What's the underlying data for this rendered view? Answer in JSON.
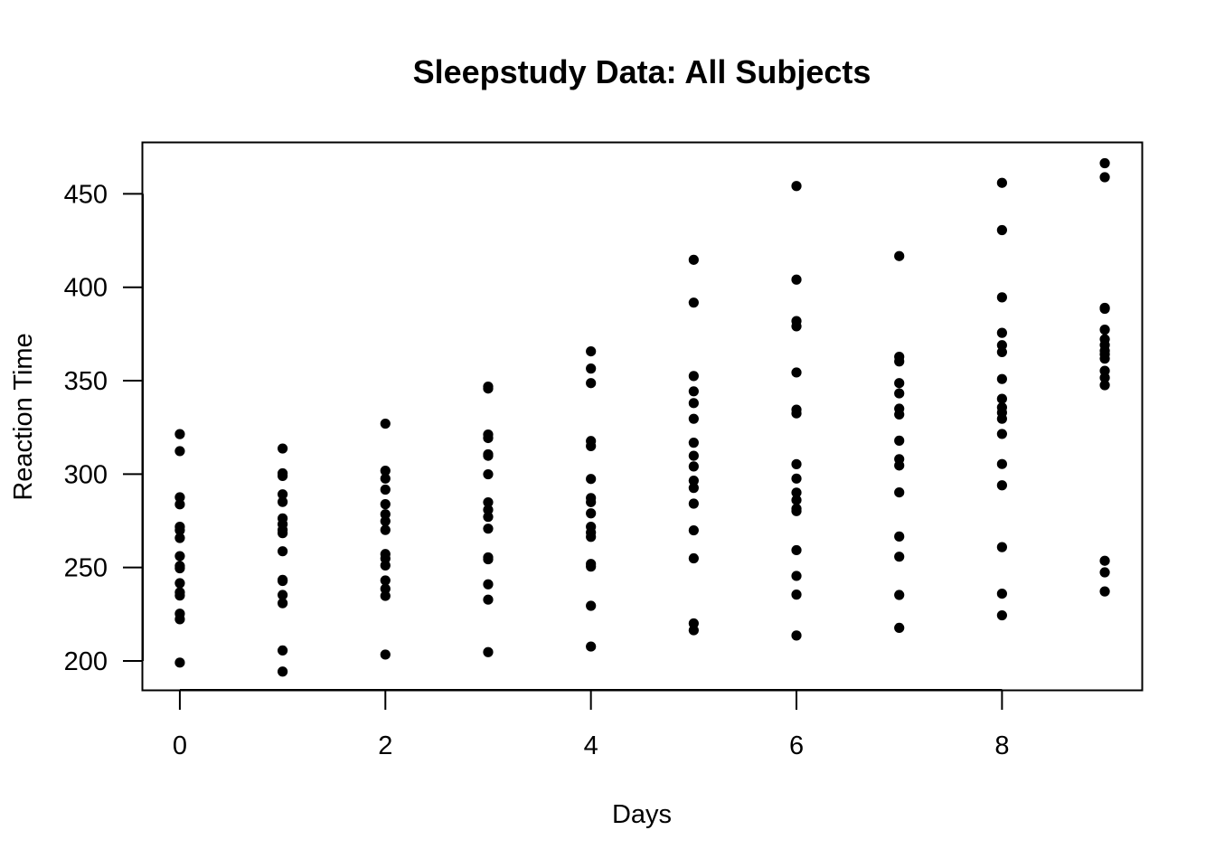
{
  "chart_data": {
    "type": "scatter",
    "title": "Sleepstudy Data: All Subjects",
    "xlabel": "Days",
    "ylabel": "Reaction Time",
    "xlim": [
      -0.36,
      9.36
    ],
    "ylim": [
      184.5,
      477.3
    ],
    "xticks": [
      0,
      2,
      4,
      6,
      8
    ],
    "yticks": [
      200,
      250,
      300,
      350,
      400,
      450
    ],
    "grid": false,
    "point_color": "#000000",
    "x": [
      0,
      1,
      2,
      3,
      4,
      5,
      6,
      7,
      8,
      9
    ],
    "y_by_x": [
      [
        321.4,
        312.3,
        287.6,
        283.8,
        271.8,
        269.9,
        265.8,
        256.1,
        250.8,
        249.6,
        241.6,
        236.7,
        235.0,
        225.3,
        222.3,
        199.1
      ],
      [
        313.7,
        300.4,
        299.0,
        289.2,
        285.1,
        276.3,
        273.2,
        270.1,
        268.4,
        258.7,
        243.4,
        242.8,
        235.3,
        230.9,
        205.6,
        194.3
      ],
      [
        327.0,
        301.8,
        297.6,
        291.7,
        283.9,
        278.5,
        274.8,
        270.1,
        257.2,
        254.8,
        251.1,
        243.1,
        238.6,
        234.8,
        203.4
      ],
      [
        346.8,
        345.8,
        321.2,
        319.3,
        310.6,
        309.8,
        299.9,
        284.9,
        280.9,
        277.1,
        270.8,
        255.4,
        254.4,
        241.0,
        232.8,
        204.7
      ],
      [
        365.7,
        356.5,
        348.7,
        317.7,
        315.0,
        297.4,
        287.2,
        285.0,
        279.0,
        271.8,
        268.7,
        266.4,
        251.9,
        250.5,
        229.5,
        207.7
      ],
      [
        414.7,
        391.8,
        352.5,
        344.3,
        338.0,
        329.6,
        316.8,
        309.8,
        304.1,
        296.5,
        292.6,
        284.2,
        269.9,
        254.9,
        220.1,
        216.4
      ],
      [
        454.2,
        404.1,
        381.9,
        379.1,
        354.4,
        334.5,
        332.5,
        305.3,
        297.6,
        290.1,
        286.1,
        281.5,
        280.2,
        259.3,
        245.5,
        235.5,
        213.6
      ],
      [
        416.7,
        362.8,
        360.3,
        348.7,
        343.2,
        335.0,
        331.9,
        317.9,
        308.0,
        304.6,
        290.2,
        266.6,
        255.8,
        235.3,
        217.7
      ],
      [
        455.9,
        430.6,
        394.6,
        375.6,
        369.0,
        365.3,
        350.9,
        340.3,
        335.7,
        332.9,
        329.6,
        321.5,
        305.4,
        294.0,
        260.9,
        236.0,
        224.4
      ],
      [
        466.4,
        458.9,
        389.0,
        388.5,
        377.3,
        372.2,
        369.1,
        366.0,
        364.1,
        361.8,
        355.3,
        351.6,
        347.6,
        253.6,
        247.4,
        237.2
      ]
    ]
  }
}
